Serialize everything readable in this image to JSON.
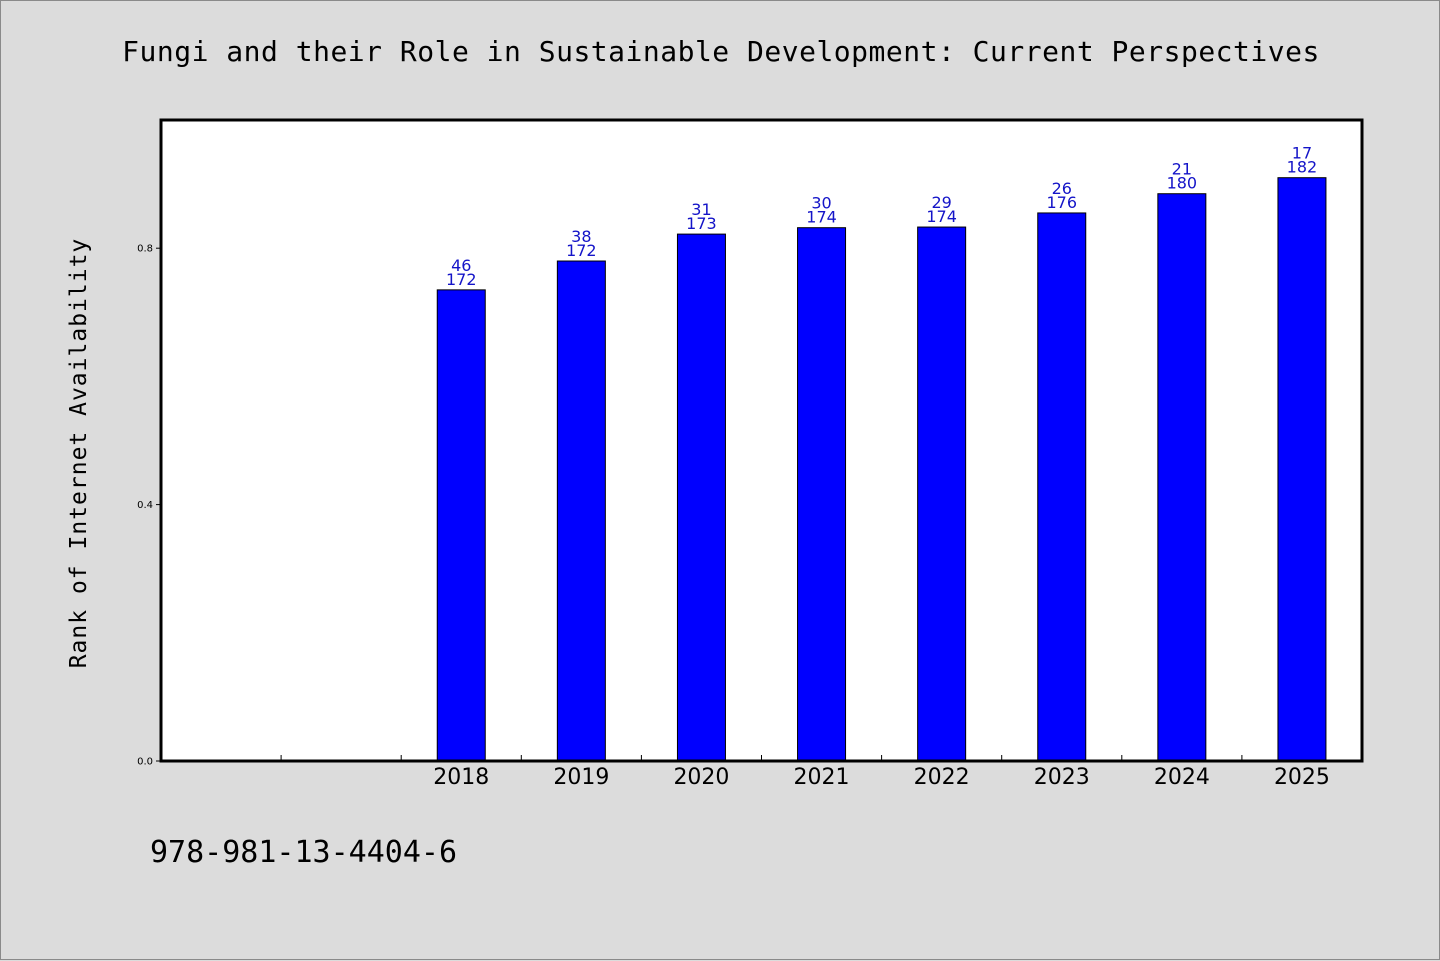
{
  "chart_data": {
    "type": "bar",
    "title": "Fungi and their Role in Sustainable Development: Current Perspectives",
    "xlabel": "",
    "ylabel": "Rank of Internet Availability",
    "categories": [
      "",
      "",
      "2018",
      "2019",
      "2020",
      "2021",
      "2022",
      "2023",
      "2024",
      "2025"
    ],
    "values": [
      null,
      null,
      0.735,
      0.78,
      0.822,
      0.832,
      0.833,
      0.855,
      0.885,
      0.91
    ],
    "bar_labels_top": [
      "",
      "",
      "46",
      "38",
      "31",
      "30",
      "29",
      "26",
      "21",
      "17"
    ],
    "bar_labels_bottom": [
      "",
      "",
      "172",
      "172",
      "173",
      "174",
      "174",
      "176",
      "180",
      "182"
    ],
    "yticks": [
      0.0,
      0.4,
      0.8
    ],
    "ytick_labels": [
      "0.0",
      "0.4",
      "0.8"
    ],
    "ylim": [
      0,
      1.0
    ],
    "grid": false,
    "colors": {
      "bar_fill": "#0000ff",
      "bar_edge": "#000000",
      "data_label": "#1414c8",
      "plot_background": "#ffffff",
      "figure_background": "#dcdcdc"
    }
  },
  "footer": {
    "isbn": "978-981-13-4404-6"
  }
}
